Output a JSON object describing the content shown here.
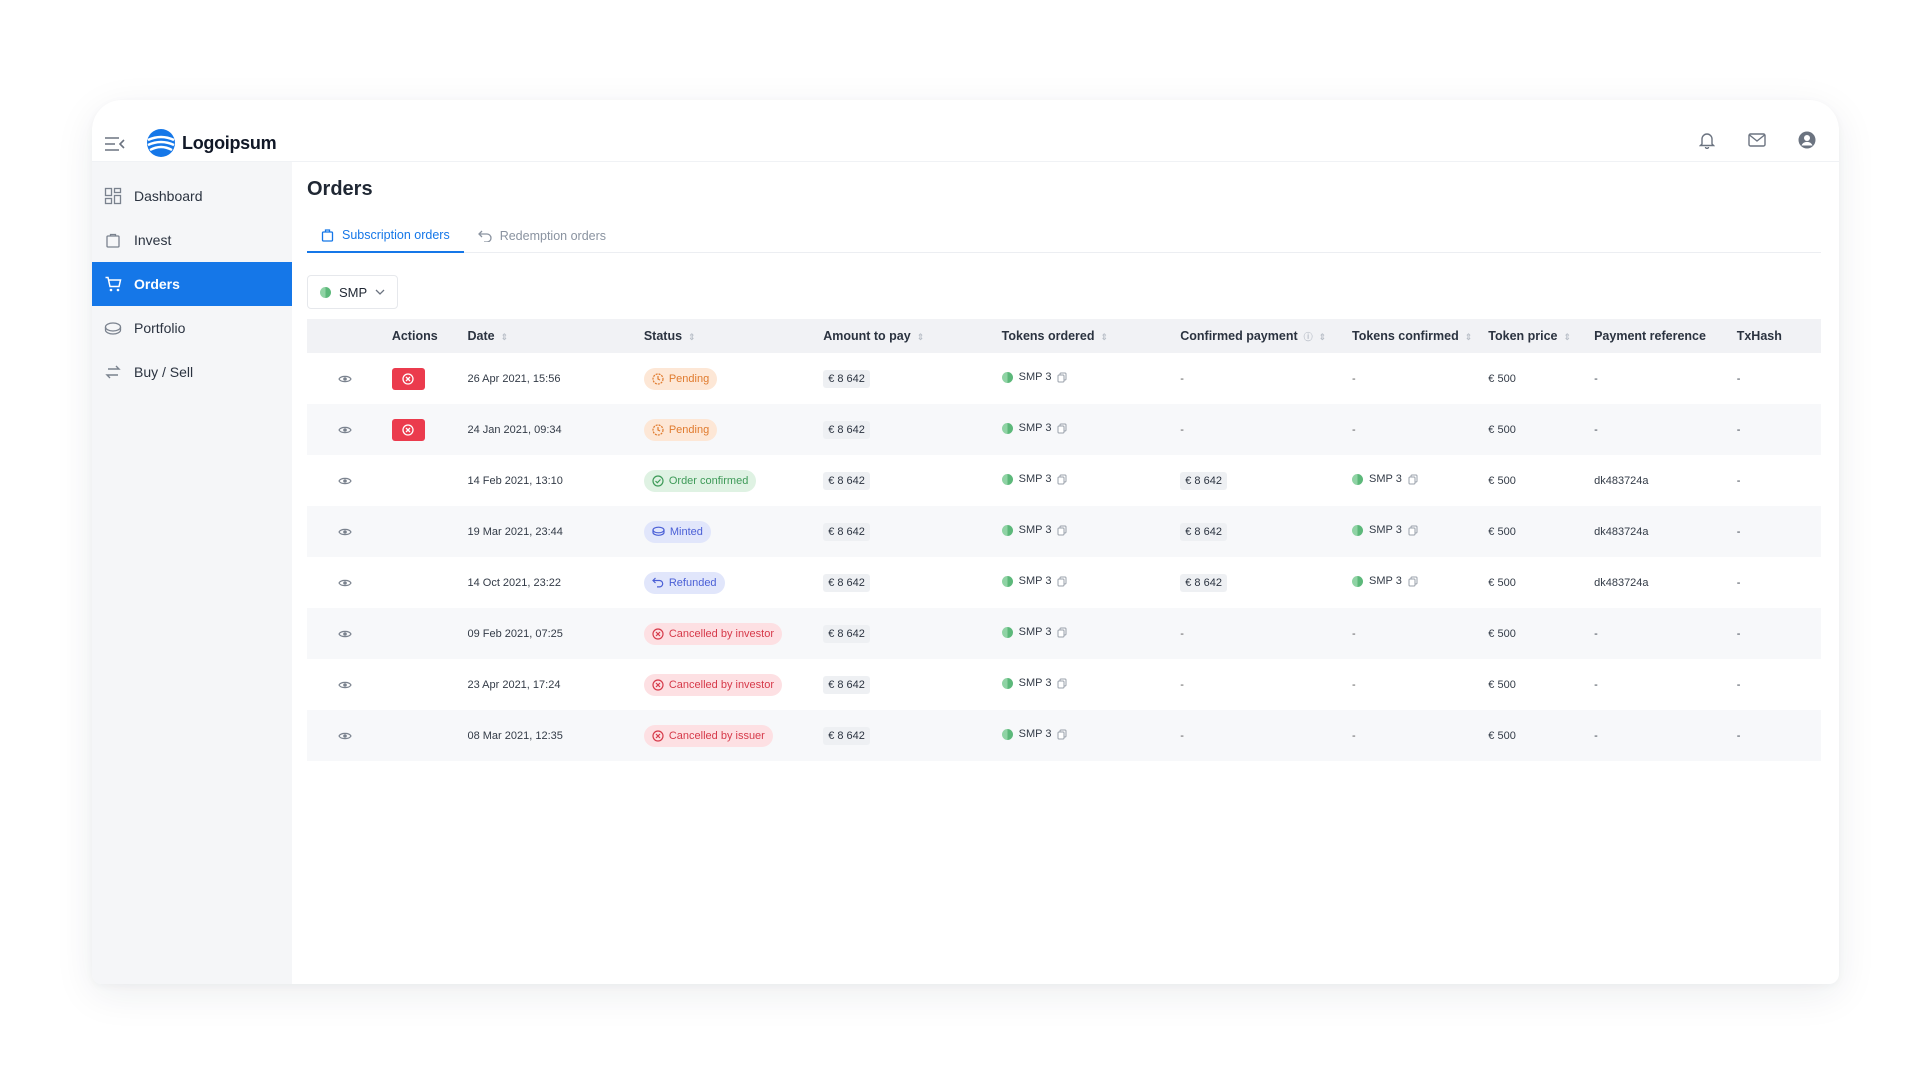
{
  "brand": {
    "name": "Logoipsum"
  },
  "sidebar": {
    "items": [
      {
        "label": "Dashboard",
        "icon": "dashboard-icon"
      },
      {
        "label": "Invest",
        "icon": "bag-icon"
      },
      {
        "label": "Orders",
        "icon": "cart-icon",
        "active": true
      },
      {
        "label": "Portfolio",
        "icon": "wallet-icon"
      },
      {
        "label": "Buy / Sell",
        "icon": "swap-icon"
      }
    ]
  },
  "page": {
    "title": "Orders"
  },
  "tabs": [
    {
      "label": "Subscription orders",
      "active": true
    },
    {
      "label": "Redemption orders",
      "active": false
    }
  ],
  "filter": {
    "selected": "SMP"
  },
  "table": {
    "headers": [
      "Actions",
      "Date",
      "Status",
      "Amount to pay",
      "Tokens ordered",
      "Confirmed payment",
      "Tokens confirmed",
      "Token price",
      "Payment reference",
      "TxHash"
    ],
    "rows": [
      {
        "cancellable": true,
        "date": "26 Apr 2021, 15:56",
        "status": "Pending",
        "status_kind": "pending",
        "amount": "€ 8 642",
        "tokens": "SMP 3",
        "confirmed_payment": "-",
        "tokens_confirmed": "-",
        "price": "€ 500",
        "reference": "-",
        "txhash": "-"
      },
      {
        "cancellable": true,
        "date": "24 Jan 2021, 09:34",
        "status": "Pending",
        "status_kind": "pending",
        "amount": "€ 8 642",
        "tokens": "SMP 3",
        "confirmed_payment": "-",
        "tokens_confirmed": "-",
        "price": "€ 500",
        "reference": "-",
        "txhash": "-"
      },
      {
        "cancellable": false,
        "date": "14 Feb 2021, 13:10",
        "status": "Order confirmed",
        "status_kind": "confirmed",
        "amount": "€ 8 642",
        "tokens": "SMP 3",
        "confirmed_payment": "€ 8 642",
        "tokens_confirmed": "SMP 3",
        "price": "€ 500",
        "reference": "dk483724a",
        "txhash": "-"
      },
      {
        "cancellable": false,
        "date": "19 Mar 2021, 23:44",
        "status": "Minted",
        "status_kind": "minted",
        "amount": "€ 8 642",
        "tokens": "SMP 3",
        "confirmed_payment": "€ 8 642",
        "tokens_confirmed": "SMP 3",
        "price": "€ 500",
        "reference": "dk483724a",
        "txhash": "-"
      },
      {
        "cancellable": false,
        "date": "14 Oct 2021, 23:22",
        "status": "Refunded",
        "status_kind": "refunded",
        "amount": "€ 8 642",
        "tokens": "SMP 3",
        "confirmed_payment": "€ 8 642",
        "tokens_confirmed": "SMP 3",
        "price": "€ 500",
        "reference": "dk483724a",
        "txhash": "-"
      },
      {
        "cancellable": false,
        "date": "09 Feb 2021, 07:25",
        "status": "Cancelled by investor",
        "status_kind": "cancel",
        "amount": "€ 8 642",
        "tokens": "SMP 3",
        "confirmed_payment": "-",
        "tokens_confirmed": "-",
        "price": "€ 500",
        "reference": "-",
        "txhash": "-"
      },
      {
        "cancellable": false,
        "date": "23 Apr 2021, 17:24",
        "status": "Cancelled by investor",
        "status_kind": "cancel",
        "amount": "€ 8 642",
        "tokens": "SMP 3",
        "confirmed_payment": "-",
        "tokens_confirmed": "-",
        "price": "€ 500",
        "reference": "-",
        "txhash": "-"
      },
      {
        "cancellable": false,
        "date": "08 Mar 2021, 12:35",
        "status": "Cancelled by issuer",
        "status_kind": "cancel",
        "amount": "€ 8 642",
        "tokens": "SMP 3",
        "confirmed_payment": "-",
        "tokens_confirmed": "-",
        "price": "€ 500",
        "reference": "-",
        "txhash": "-"
      }
    ]
  },
  "colors": {
    "accent": "#1577e8",
    "danger": "#eb3b4d"
  }
}
